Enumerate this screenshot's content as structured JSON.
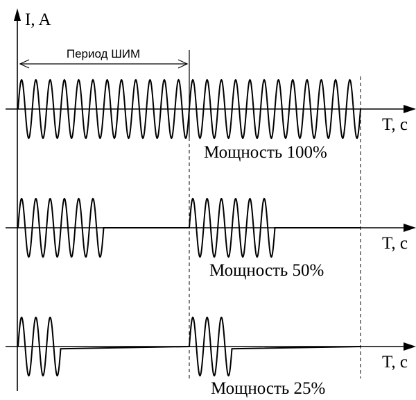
{
  "y_axis_label": "I, A",
  "x_axis_label": "T, c",
  "period_label": "Период ШИМ",
  "panels": [
    {
      "caption": "Мощность 100%",
      "duty": 1.0
    },
    {
      "caption": "Мощность 50%",
      "duty": 0.5
    },
    {
      "caption": "Мощность 25%",
      "duty": 0.25
    }
  ],
  "cycles_per_period": 12,
  "colors": {
    "stroke": "#000000",
    "background": "#ffffff"
  }
}
